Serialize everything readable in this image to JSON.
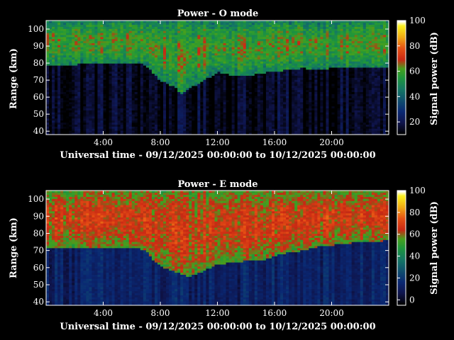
{
  "chart_data": [
    {
      "type": "heatmap",
      "title": "Power - O mode",
      "xlabel": "Universal time - 09/12/2025 00:00:00 to 10/12/2025 00:00:00",
      "ylabel": "Range (km)",
      "colorbar_label": "Signal power (dB)",
      "xlim": [
        0,
        24
      ],
      "ylim": [
        38,
        105
      ],
      "x_ticks": [
        "4:00",
        "8:00",
        "12:00",
        "16:00",
        "20:00"
      ],
      "x_tick_values": [
        4,
        8,
        12,
        16,
        20
      ],
      "y_ticks": [
        "40",
        "50",
        "60",
        "70",
        "80",
        "90",
        "100"
      ],
      "y_tick_values": [
        40,
        50,
        60,
        70,
        80,
        90,
        100
      ],
      "colorbar_ticks": [
        "20",
        "40",
        "60",
        "80",
        "100"
      ],
      "colorbar_tick_values": [
        20,
        40,
        60,
        80,
        100
      ],
      "colorbar_range": [
        10,
        100
      ],
      "boundary_time_h": [
        0,
        1,
        2,
        3,
        4,
        5,
        6,
        7,
        7.5,
        8,
        9,
        9.5,
        10,
        10.5,
        11,
        11.5,
        12,
        13,
        14,
        15,
        16,
        17,
        18,
        19,
        20,
        21,
        22,
        23,
        24
      ],
      "boundary_range_km": [
        79,
        79,
        79,
        80,
        80,
        80,
        80,
        79,
        74,
        70,
        66,
        62,
        65,
        67,
        70,
        72,
        75,
        73,
        72,
        74,
        75,
        76,
        77,
        76,
        77,
        78,
        78,
        78,
        78
      ],
      "upper_power_db": 48,
      "lower_power_db": 14,
      "peak_power_db": 62
    },
    {
      "type": "heatmap",
      "title": "Power - E mode",
      "xlabel": "Universal time - 09/12/2025 00:00:00 to 10/12/2025 00:00:00",
      "ylabel": "Range (km)",
      "colorbar_label": "Signal power (dB)",
      "xlim": [
        0,
        24
      ],
      "ylim": [
        38,
        105
      ],
      "x_ticks": [
        "4:00",
        "8:00",
        "12:00",
        "16:00",
        "20:00"
      ],
      "x_tick_values": [
        4,
        8,
        12,
        16,
        20
      ],
      "y_ticks": [
        "40",
        "50",
        "60",
        "70",
        "80",
        "90",
        "100"
      ],
      "y_tick_values": [
        40,
        50,
        60,
        70,
        80,
        90,
        100
      ],
      "colorbar_ticks": [
        "0",
        "20",
        "40",
        "60",
        "80",
        "100"
      ],
      "colorbar_tick_values": [
        0,
        20,
        40,
        60,
        80,
        100
      ],
      "colorbar_range": [
        -5,
        100
      ],
      "boundary_time_h": [
        0,
        1,
        2,
        3,
        4,
        5,
        6,
        7,
        7.5,
        8,
        9,
        9.5,
        10,
        10.5,
        11,
        11.5,
        12,
        13,
        14,
        15,
        16,
        17,
        18,
        19,
        20,
        21,
        22,
        23,
        24
      ],
      "boundary_range_km": [
        71,
        72,
        72,
        72,
        72,
        72,
        72,
        70,
        64,
        61,
        58,
        56,
        55,
        56,
        58,
        60,
        62,
        63,
        64,
        64,
        67,
        69,
        70,
        72,
        73,
        74,
        75,
        75,
        76
      ],
      "upper_power_db": 55,
      "lower_power_db": 12,
      "peak_power_db": 68
    }
  ]
}
